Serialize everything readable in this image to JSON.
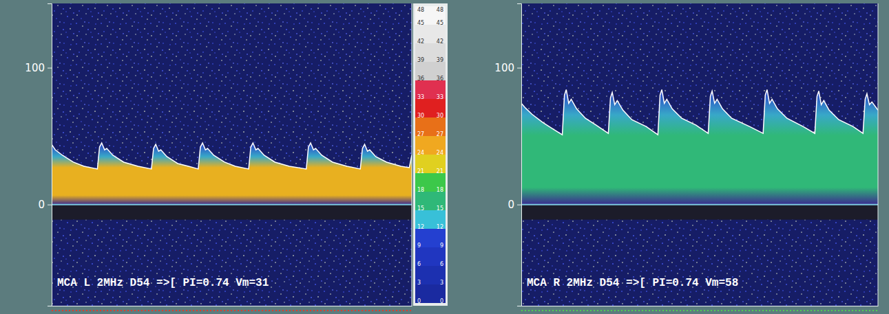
{
  "chart_data": [
    {
      "type": "area",
      "title": "MCA L 2MHz D54 =>[ PI=0.74 Vm=31",
      "x": [
        0,
        1,
        3,
        6,
        9,
        12.7,
        13.3,
        13.9,
        14.7,
        15.3,
        17,
        20,
        24,
        27.7,
        28.3,
        28.9,
        29.7,
        30.3,
        32,
        35,
        38,
        40.7,
        41.3,
        41.9,
        42.7,
        43.3,
        45,
        48,
        51,
        54.7,
        55.3,
        55.9,
        56.7,
        57.3,
        59,
        62,
        66,
        70.7,
        71.3,
        71.9,
        72.7,
        73.3,
        75,
        78,
        82,
        85.7,
        86.3,
        86.9,
        87.7,
        88.3,
        90,
        93,
        97,
        99.3,
        100
      ],
      "series": [
        {
          "type": "area",
          "color": "#e8b020",
          "values": [
            44,
            40,
            36,
            31,
            28,
            26,
            42,
            45,
            40,
            41,
            36,
            31,
            28,
            26,
            41,
            44,
            39,
            40,
            35,
            30,
            28,
            26,
            42,
            45,
            40,
            41,
            36,
            31,
            28,
            26,
            42,
            45,
            40,
            41,
            36,
            31,
            28,
            26,
            42,
            45,
            40,
            41,
            36,
            31,
            28,
            26,
            41,
            44,
            39,
            40,
            35,
            31,
            28,
            27,
            36
          ]
        }
      ],
      "xlim": [
        0,
        100
      ],
      "ylim": [
        -74,
        147
      ],
      "yticks": [
        0,
        100
      ],
      "tick_labels": "y"
    },
    {
      "type": "area",
      "title": "MCA R 2MHz D54 =>[ PI=0.74 Vm=58",
      "x": [
        0,
        1,
        3,
        6,
        9,
        11.5,
        12.1,
        12.6,
        13.3,
        14,
        15.5,
        18,
        21,
        24.4,
        25,
        25.5,
        26.2,
        26.9,
        28.5,
        31,
        35,
        38.3,
        38.9,
        39.4,
        40.1,
        40.8,
        42.3,
        45,
        49,
        52.4,
        53,
        53.5,
        54.2,
        54.9,
        56.4,
        59,
        64,
        67.8,
        68.4,
        68.9,
        69.6,
        70.3,
        71.8,
        74.5,
        79,
        82.3,
        82.9,
        83.4,
        84.1,
        84.8,
        86.3,
        89,
        93,
        95.8,
        96.4,
        96.9,
        97.6,
        98.3,
        100
      ],
      "series": [
        {
          "type": "area",
          "color": "#30b878",
          "values": [
            74,
            71,
            66,
            60,
            55,
            51,
            80,
            84,
            74,
            77,
            70,
            63,
            58,
            52,
            78,
            82,
            73,
            76,
            69,
            62,
            57,
            51,
            80,
            84,
            74,
            77,
            70,
            63,
            58,
            52,
            79,
            83,
            74,
            77,
            70,
            63,
            57,
            52,
            80,
            84,
            74,
            77,
            70,
            63,
            57,
            52,
            79,
            83,
            73,
            76,
            69,
            62,
            57,
            52,
            77,
            81,
            73,
            75,
            69
          ]
        }
      ],
      "xlim": [
        0,
        100
      ],
      "ylim": [
        -74,
        147
      ],
      "yticks": [
        0,
        100
      ],
      "tick_labels": "y"
    }
  ],
  "colorbar": {
    "range": [
      0,
      48
    ],
    "ticks": [
      0,
      3,
      6,
      9,
      12,
      15,
      18,
      21,
      24,
      27,
      30,
      33,
      36,
      39,
      42,
      45,
      48
    ],
    "colors": [
      "#1a2aa0",
      "#1c30b0",
      "#2036c0",
      "#2440d0",
      "#38c0d8",
      "#2fb878",
      "#3cc84a",
      "#e0d020",
      "#f0a820",
      "#e87018",
      "#e02020",
      "#e03050",
      "#d0d0d0",
      "#dcdcdc",
      "#e8e8e8",
      "#f6f6f6"
    ]
  }
}
